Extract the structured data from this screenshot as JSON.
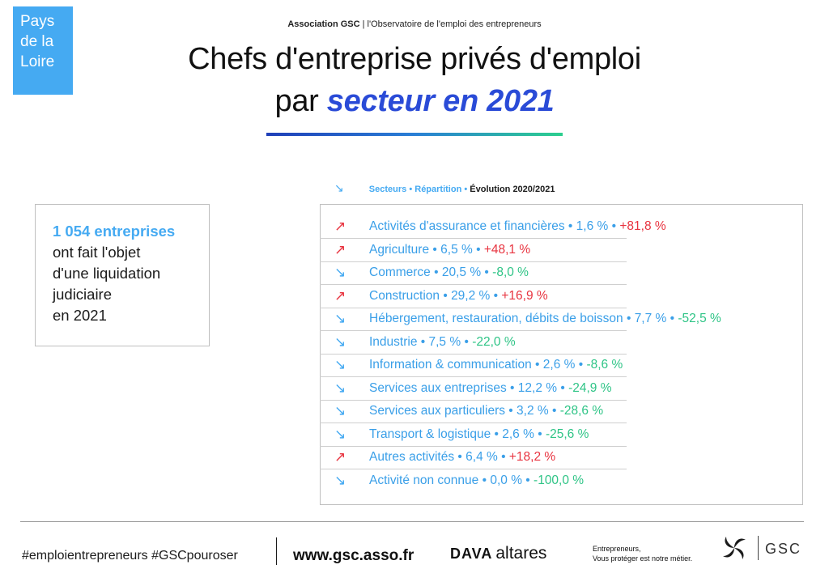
{
  "region": {
    "lines": [
      "Pays",
      "de la",
      "Loire"
    ]
  },
  "header": {
    "org": "Association GSC",
    "subtitle": "| l'Observatoire de l'emploi des entrepreneurs"
  },
  "title": {
    "line1": "Chefs d'entreprise privés d'emploi",
    "line2_prefix": "par ",
    "line2_highlight": "secteur en 2021"
  },
  "legend": {
    "arrow": "↘",
    "k1": "Secteurs •",
    "k2": "Répartition •",
    "k3": "Évolution 2020/2021"
  },
  "summary": {
    "count": "1 054 entreprises",
    "lines": [
      "ont fait l'objet",
      "d'une liquidation",
      "judiciaire",
      "en 2021"
    ]
  },
  "sectors": [
    {
      "name": "Activités d'assurance et financières",
      "share": "1,6 %",
      "change": "+81,8 %",
      "trend": "up",
      "arrow": "↗"
    },
    {
      "name": "Agriculture",
      "share": "6,5 %",
      "change": "+48,1 %",
      "trend": "up",
      "arrow": "↗"
    },
    {
      "name": "Commerce",
      "share": "20,5 %",
      "change": "-8,0 %",
      "trend": "down",
      "arrow": "↘"
    },
    {
      "name": "Construction",
      "share": "29,2 %",
      "change": "+16,9 %",
      "trend": "up",
      "arrow": "↗"
    },
    {
      "name": "Hébergement, restauration, débits de boisson",
      "share": "7,7 %",
      "change": "-52,5 %",
      "trend": "down",
      "arrow": "↘"
    },
    {
      "name": "Industrie",
      "share": "7,5 %",
      "change": "-22,0 %",
      "trend": "down",
      "arrow": "↘"
    },
    {
      "name": "Information & communication",
      "share": "2,6 %",
      "change": "-8,6 %",
      "trend": "down",
      "arrow": "↘"
    },
    {
      "name": "Services aux entreprises",
      "share": "12,2 %",
      "change": "-24,9 %",
      "trend": "down",
      "arrow": "↘"
    },
    {
      "name": "Services aux particuliers",
      "share": "3,2 %",
      "change": "-28,6 %",
      "trend": "down",
      "arrow": "↘"
    },
    {
      "name": "Transport & logistique",
      "share": "2,6 %",
      "change": "-25,6 %",
      "trend": "down",
      "arrow": "↘"
    },
    {
      "name": "Autres activités",
      "share": "6,4 %",
      "change": "+18,2 %",
      "trend": "up",
      "arrow": "↗"
    },
    {
      "name": "Activité non connue",
      "share": "0,0 %",
      "change": "-100,0 %",
      "trend": "down",
      "arrow": "↘"
    }
  ],
  "colors": {
    "accent_blue": "#45aaf2",
    "title_highlight": "#2a4bd7",
    "increase": "#e8333f",
    "decrease": "#2ec486"
  },
  "footer": {
    "hashtags": "#emploientrepreneurs #GSCpouroser",
    "website": "www.gsc.asso.fr",
    "partner_mark": "DAVA",
    "partner_name": "altares",
    "tagline_1": "Entrepreneurs,",
    "tagline_2": "Vous protéger est notre métier.",
    "brand": "GSC"
  }
}
